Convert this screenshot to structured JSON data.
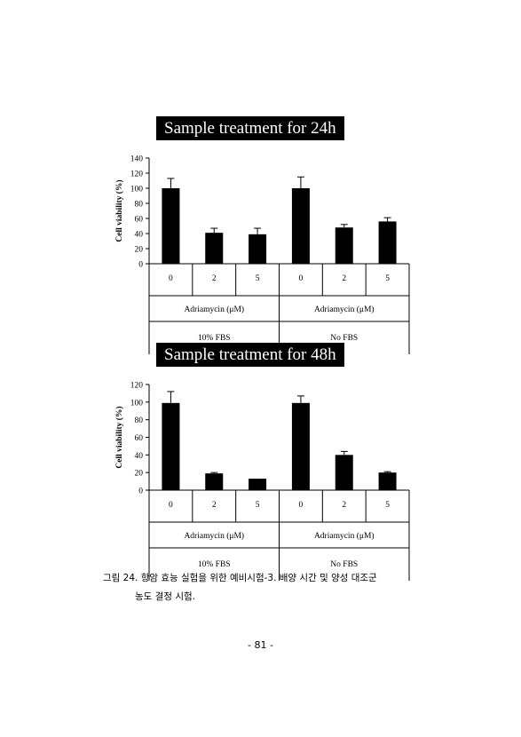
{
  "chart_data": [
    {
      "type": "bar",
      "title": "Sample treatment for 24h",
      "ylabel": "Cell viability (%)",
      "ylim": [
        0,
        140
      ],
      "yticks": [
        0,
        20,
        40,
        60,
        80,
        100,
        120,
        140
      ],
      "categories": [
        "0",
        "2",
        "5",
        "0",
        "2",
        "5"
      ],
      "values": [
        100,
        41,
        39,
        100,
        48,
        56
      ],
      "errors": [
        13,
        6,
        8,
        15,
        4,
        5
      ],
      "groups": [
        {
          "treatment": "Adriamycin (μM)",
          "condition": "10% FBS"
        },
        {
          "treatment": "Adriamycin (μM)",
          "condition": "No FBS"
        }
      ],
      "bar_color": "#000000"
    },
    {
      "type": "bar",
      "title": "Sample treatment for 48h",
      "ylabel": "Cell viability (%)",
      "ylim": [
        0,
        120
      ],
      "yticks": [
        0,
        20,
        40,
        60,
        80,
        100,
        120
      ],
      "categories": [
        "0",
        "2",
        "5",
        "0",
        "2",
        "5"
      ],
      "values": [
        99,
        19,
        13,
        99,
        40,
        20
      ],
      "errors": [
        13,
        1,
        0,
        8,
        4,
        1
      ],
      "groups": [
        {
          "treatment": "Adriamycin (μM)",
          "condition": "10% FBS"
        },
        {
          "treatment": "Adriamycin (μM)",
          "condition": "No FBS"
        }
      ],
      "bar_color": "#000000"
    }
  ],
  "caption": {
    "line1": "그림 24. 항암 효능 실험을 위한 예비시험-3. 배양 시간 및 양성 대조군",
    "line2": "농도 결정 시험."
  },
  "page_number": "- 81 -"
}
